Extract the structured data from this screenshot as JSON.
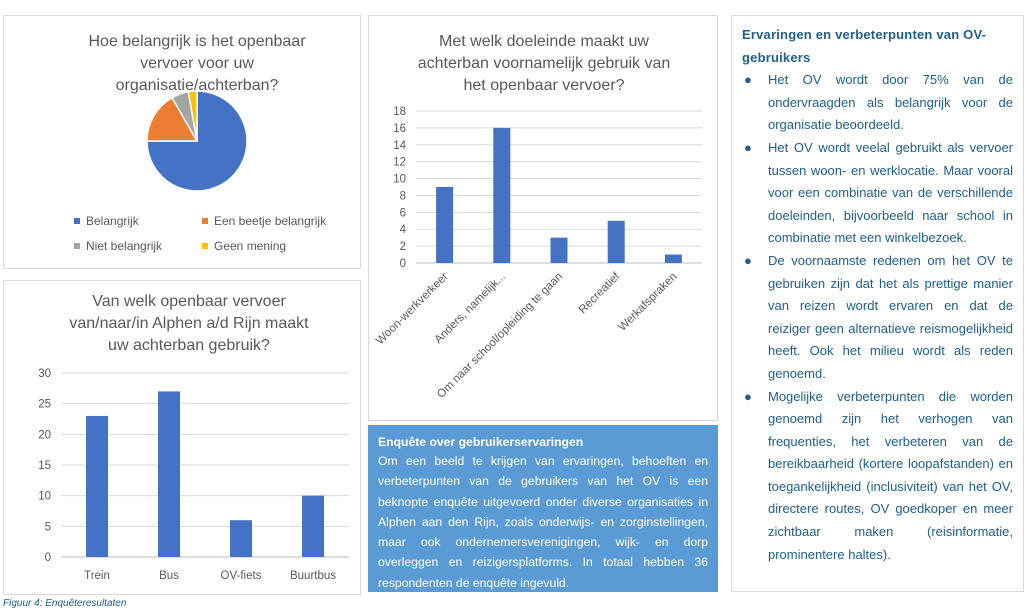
{
  "chart_data": [
    {
      "type": "pie",
      "title": "Hoe belangrijk is het openbaar vervoer voor uw organisatie/achterban?",
      "title_lines": [
        "Hoe belangrijk is het openbaar",
        "vervoer voor uw",
        "organisatie/achterban?"
      ],
      "categories": [
        "Belangrijk",
        "Een beetje belangrijk",
        "Niet belangrijk",
        "Geen mening"
      ],
      "values": [
        27,
        6,
        2,
        1
      ],
      "colors": [
        "#4472c4",
        "#ed7d31",
        "#a5a5a5",
        "#ffc000"
      ],
      "legend": "bottom"
    },
    {
      "type": "bar",
      "title": "Van welk openbaar vervoer van/naar/in Alphen a/d Rijn maakt uw achterban gebruik?",
      "title_lines": [
        "Van welk openbaar vervoer",
        "van/naar/in Alphen a/d Rijn maakt",
        "uw achterban gebruik?"
      ],
      "categories": [
        "Trein",
        "Bus",
        "OV-fiets",
        "Buurtbus"
      ],
      "values": [
        23,
        27,
        6,
        10
      ],
      "ylim": [
        0,
        30
      ],
      "yticks": [
        0,
        5,
        10,
        15,
        20,
        25,
        30
      ],
      "grid": true,
      "color": "#4472c4"
    },
    {
      "type": "bar",
      "title": "Met welk doeleinde maakt uw achterban voornamelijk gebruik van het openbaar vervoer?",
      "title_lines": [
        "Met welk doeleinde maakt uw",
        "achterban voornamelijk gebruik van",
        "het openbaar vervoer?"
      ],
      "categories": [
        "Woon-werkverkeer",
        "Anders, namelijk...",
        "Om naar school/opleiding te gaan",
        "Recreatief",
        "Werkafspraken"
      ],
      "values": [
        9,
        16,
        3,
        5,
        1
      ],
      "ylim": [
        0,
        18
      ],
      "yticks": [
        0,
        2,
        4,
        6,
        8,
        10,
        12,
        14,
        16,
        18
      ],
      "grid": true,
      "color": "#4472c4"
    }
  ],
  "survey": {
    "title": "Enquête over gebruikerservaringen",
    "body": "Om een beeld te krijgen van ervaringen, behoeften en verbeterpunten van de gebruikers van het OV is een beknopte enquête uitgevoerd onder diverse organisaties in Alphen aan den Rijn, zoals onderwijs- en zorginstellingen, maar ook ondernemersverenigingen, wijk- en dorp overleggen en reizigersplatforms. In totaal hebben 36 respondenten de enquête ingevuld."
  },
  "findings": {
    "title": "Ervaringen en verbeterpunten van OV-gebruikers",
    "bullets": [
      "Het OV wordt door 75% van de ondervraagden als belangrijk voor de organisatie beoordeeld.",
      "Het OV wordt veelal gebruikt als vervoer tussen woon- en werklocatie. Maar vooral voor een combinatie van de verschillende doeleinden, bijvoorbeeld naar school in combinatie met een winkelbezoek.",
      "De voornaamste redenen om het OV te gebruiken zijn dat het als prettige manier van reizen wordt ervaren en dat de reiziger geen alternatieve reismogelijkheid heeft. Ook het milieu wordt als reden genoemd.",
      "Mogelijke verbeterpunten die worden genoemd zijn het verhogen van frequenties, het verbeteren van de bereikbaarheid (kortere loopafstanden) en toegankelijkheid (inclusiviteit) van het OV, directere routes, OV goedkoper en meer zichtbaar maken (reisinformatie, prominentere haltes)."
    ]
  },
  "caption": "Figuur 4: Enquêteresultaten"
}
